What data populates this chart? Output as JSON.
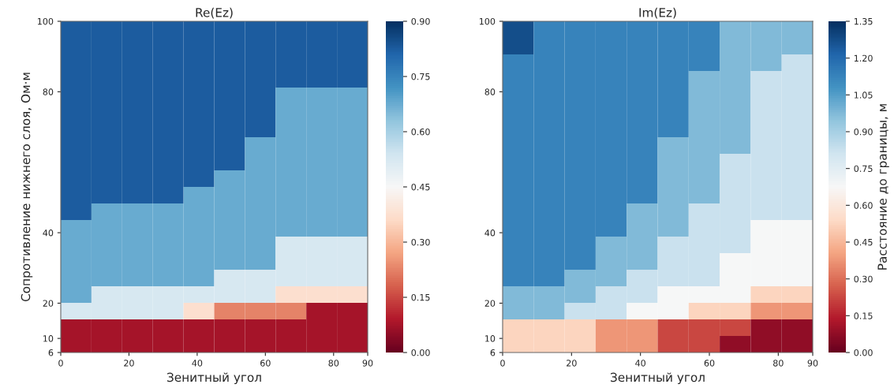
{
  "chart_data": [
    {
      "type": "heatmap",
      "title": "Re(Ez)",
      "xlabel": "Зенитный угол",
      "ylabel": "Сопротивление нижнего слоя, Ом·м",
      "xlim": [
        0,
        90
      ],
      "xticks": [
        0,
        20,
        40,
        60,
        80,
        90
      ],
      "ylim": [
        6,
        100
      ],
      "yticks": [
        6,
        10,
        20,
        40,
        80,
        100
      ],
      "clim": [
        0,
        0.9
      ],
      "cticks": [
        {
          "value": 0,
          "label": "0.00"
        },
        {
          "value": 0.15,
          "label": "0.15"
        },
        {
          "value": 0.3,
          "label": "0.30"
        },
        {
          "value": 0.45,
          "label": "0.45"
        },
        {
          "value": 0.6,
          "label": "0.60"
        },
        {
          "value": 0.75,
          "label": "0.75"
        },
        {
          "value": 0.9,
          "label": "0.90"
        }
      ],
      "grid": false,
      "cells": [
        [
          0.825,
          0.825,
          0.825,
          0.825,
          0.825,
          0.825,
          0.825,
          0.825,
          0.825,
          0.825
        ],
        [
          0.825,
          0.825,
          0.825,
          0.825,
          0.825,
          0.825,
          0.825,
          0.825,
          0.825,
          0.825
        ],
        [
          0.825,
          0.825,
          0.825,
          0.825,
          0.825,
          0.825,
          0.825,
          0.825,
          0.825,
          0.825
        ],
        [
          0.825,
          0.825,
          0.825,
          0.825,
          0.825,
          0.825,
          0.825,
          0.825,
          0.825,
          0.825
        ],
        [
          0.825,
          0.825,
          0.825,
          0.825,
          0.825,
          0.825,
          0.825,
          0.675,
          0.675,
          0.675
        ],
        [
          0.825,
          0.825,
          0.825,
          0.825,
          0.825,
          0.825,
          0.825,
          0.675,
          0.675,
          0.675
        ],
        [
          0.825,
          0.825,
          0.825,
          0.825,
          0.825,
          0.825,
          0.825,
          0.675,
          0.675,
          0.675
        ],
        [
          0.825,
          0.825,
          0.825,
          0.825,
          0.825,
          0.825,
          0.675,
          0.675,
          0.675,
          0.675
        ],
        [
          0.825,
          0.825,
          0.825,
          0.825,
          0.825,
          0.825,
          0.675,
          0.675,
          0.675,
          0.675
        ],
        [
          0.825,
          0.825,
          0.825,
          0.825,
          0.825,
          0.675,
          0.675,
          0.675,
          0.675,
          0.675
        ],
        [
          0.825,
          0.825,
          0.825,
          0.825,
          0.675,
          0.675,
          0.675,
          0.675,
          0.675,
          0.675
        ],
        [
          0.825,
          0.675,
          0.675,
          0.675,
          0.675,
          0.675,
          0.675,
          0.675,
          0.675,
          0.675
        ],
        [
          0.675,
          0.675,
          0.675,
          0.675,
          0.675,
          0.675,
          0.675,
          0.675,
          0.675,
          0.675
        ],
        [
          0.675,
          0.675,
          0.675,
          0.675,
          0.675,
          0.675,
          0.675,
          0.525,
          0.525,
          0.525
        ],
        [
          0.675,
          0.675,
          0.675,
          0.675,
          0.675,
          0.675,
          0.675,
          0.525,
          0.525,
          0.525
        ],
        [
          0.675,
          0.675,
          0.675,
          0.675,
          0.675,
          0.525,
          0.525,
          0.525,
          0.525,
          0.525
        ],
        [
          0.675,
          0.525,
          0.525,
          0.525,
          0.525,
          0.525,
          0.525,
          0.375,
          0.375,
          0.375
        ],
        [
          0.525,
          0.525,
          0.525,
          0.525,
          0.375,
          0.225,
          0.225,
          0.225,
          0.075,
          0.075
        ],
        [
          0.075,
          0.075,
          0.075,
          0.075,
          0.075,
          0.075,
          0.075,
          0.075,
          0.075,
          0.075
        ],
        [
          0.075,
          0.075,
          0.075,
          0.075,
          0.075,
          0.075,
          0.075,
          0.075,
          0.075,
          0.075
        ]
      ]
    },
    {
      "type": "heatmap",
      "title": "Im(Ez)",
      "xlabel": "Зенитный угол",
      "clabel": "Расстояние до границы, м",
      "xlim": [
        0,
        90
      ],
      "xticks": [
        0,
        20,
        40,
        60,
        80,
        90
      ],
      "ylim": [
        6,
        100
      ],
      "yticks": [
        6,
        10,
        20,
        40,
        80,
        100
      ],
      "clim": [
        0,
        1.35
      ],
      "cticks": [
        {
          "value": 0,
          "label": "0.00"
        },
        {
          "value": 0.15,
          "label": "0.15"
        },
        {
          "value": 0.3,
          "label": "0.30"
        },
        {
          "value": 0.45,
          "label": "0.45"
        },
        {
          "value": 0.6,
          "label": "0.60"
        },
        {
          "value": 0.75,
          "label": "0.75"
        },
        {
          "value": 0.9,
          "label": "0.90"
        },
        {
          "value": 1.05,
          "label": "1.05"
        },
        {
          "value": 1.2,
          "label": "1.20"
        },
        {
          "value": 1.35,
          "label": "1.35"
        }
      ],
      "grid": false,
      "cells": [
        [
          1.275,
          1.125,
          1.125,
          1.125,
          1.125,
          1.125,
          1.125,
          0.975,
          0.975,
          0.975
        ],
        [
          1.275,
          1.125,
          1.125,
          1.125,
          1.125,
          1.125,
          1.125,
          0.975,
          0.975,
          0.975
        ],
        [
          1.125,
          1.125,
          1.125,
          1.125,
          1.125,
          1.125,
          1.125,
          0.975,
          0.975,
          0.825
        ],
        [
          1.125,
          1.125,
          1.125,
          1.125,
          1.125,
          1.125,
          0.975,
          0.975,
          0.825,
          0.825
        ],
        [
          1.125,
          1.125,
          1.125,
          1.125,
          1.125,
          1.125,
          0.975,
          0.975,
          0.825,
          0.825
        ],
        [
          1.125,
          1.125,
          1.125,
          1.125,
          1.125,
          1.125,
          0.975,
          0.975,
          0.825,
          0.825
        ],
        [
          1.125,
          1.125,
          1.125,
          1.125,
          1.125,
          1.125,
          0.975,
          0.975,
          0.825,
          0.825
        ],
        [
          1.125,
          1.125,
          1.125,
          1.125,
          1.125,
          0.975,
          0.975,
          0.975,
          0.825,
          0.825
        ],
        [
          1.125,
          1.125,
          1.125,
          1.125,
          1.125,
          0.975,
          0.975,
          0.825,
          0.825,
          0.825
        ],
        [
          1.125,
          1.125,
          1.125,
          1.125,
          1.125,
          0.975,
          0.975,
          0.825,
          0.825,
          0.825
        ],
        [
          1.125,
          1.125,
          1.125,
          1.125,
          1.125,
          0.975,
          0.975,
          0.825,
          0.825,
          0.825
        ],
        [
          1.125,
          1.125,
          1.125,
          1.125,
          0.975,
          0.975,
          0.825,
          0.825,
          0.825,
          0.825
        ],
        [
          1.125,
          1.125,
          1.125,
          1.125,
          0.975,
          0.975,
          0.825,
          0.825,
          0.675,
          0.675
        ],
        [
          1.125,
          1.125,
          1.125,
          0.975,
          0.975,
          0.825,
          0.825,
          0.825,
          0.675,
          0.675
        ],
        [
          1.125,
          1.125,
          1.125,
          0.975,
          0.975,
          0.825,
          0.825,
          0.675,
          0.675,
          0.675
        ],
        [
          1.125,
          1.125,
          0.975,
          0.975,
          0.825,
          0.825,
          0.825,
          0.675,
          0.675,
          0.675
        ],
        [
          0.975,
          0.975,
          0.975,
          0.825,
          0.825,
          0.675,
          0.675,
          0.675,
          0.525,
          0.525
        ],
        [
          0.975,
          0.975,
          0.825,
          0.825,
          0.675,
          0.675,
          0.525,
          0.525,
          0.375,
          0.375
        ],
        [
          0.525,
          0.525,
          0.525,
          0.375,
          0.375,
          0.225,
          0.225,
          0.225,
          0.075,
          0.075
        ],
        [
          0.525,
          0.525,
          0.525,
          0.375,
          0.375,
          0.225,
          0.225,
          0.075,
          0.075,
          0.075
        ]
      ]
    }
  ]
}
